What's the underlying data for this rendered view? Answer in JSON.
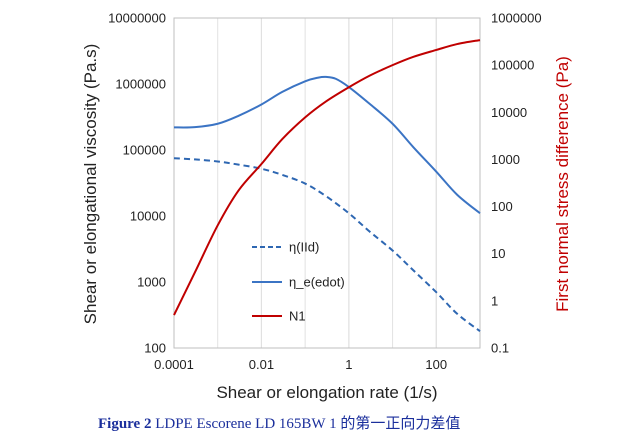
{
  "chart_data": {
    "type": "line",
    "title": "",
    "xlabel": "Shear or elongation rate (1/s)",
    "ylabel_left": "Shear or elongational viscosity (Pa.s)",
    "ylabel_right": "First normal stress difference (Pa)",
    "x_scale": "log",
    "xlim": [
      0.0001,
      1000
    ],
    "y_left_scale": "log",
    "ylim_left": [
      100,
      10000000
    ],
    "y_right_scale": "log",
    "ylim_right": [
      0.1,
      1000000
    ],
    "x_ticks": [
      "0.0001",
      "0.01",
      "1",
      "100"
    ],
    "x_tick_values": [
      0.0001,
      0.01,
      1,
      100
    ],
    "y_left_ticks": [
      "100",
      "1000",
      "10000",
      "100000",
      "1000000",
      "10000000"
    ],
    "y_left_tick_values": [
      100,
      1000,
      10000,
      100000,
      1000000,
      10000000
    ],
    "y_right_ticks": [
      "0.1",
      "1",
      "10",
      "100",
      "1000",
      "10000",
      "100000",
      "1000000"
    ],
    "y_right_tick_values": [
      0.1,
      1,
      10,
      100,
      1000,
      10000,
      100000,
      1000000
    ],
    "grid": "vertical",
    "legend_position": "center-left",
    "series": [
      {
        "name": "η(IId)",
        "axis": "left",
        "color": "#2e67b2",
        "style": "dashed",
        "x": [
          0.0001,
          0.0003,
          0.001,
          0.003,
          0.01,
          0.03,
          0.1,
          0.3,
          1,
          3,
          10,
          30,
          100,
          300,
          1000
        ],
        "y": [
          75000,
          72000,
          67000,
          60000,
          52000,
          42000,
          31000,
          20000,
          11000,
          5800,
          3000,
          1500,
          700,
          330,
          180
        ]
      },
      {
        "name": "η_e(edot)",
        "axis": "left",
        "color": "#3b74c4",
        "style": "solid",
        "x": [
          0.0001,
          0.0003,
          0.001,
          0.003,
          0.01,
          0.03,
          0.1,
          0.2,
          0.3,
          0.5,
          1,
          3,
          10,
          30,
          100,
          300,
          1000
        ],
        "y": [
          220000,
          222000,
          250000,
          330000,
          490000,
          760000,
          1100000,
          1250000,
          1280000,
          1200000,
          900000,
          500000,
          250000,
          110000,
          47000,
          21000,
          11000
        ]
      },
      {
        "name": "N1",
        "axis": "right",
        "color": "#c00000",
        "style": "solid",
        "x": [
          0.0001,
          0.0003,
          0.001,
          0.003,
          0.01,
          0.03,
          0.1,
          0.3,
          1,
          3,
          10,
          30,
          100,
          300,
          1000
        ],
        "y": [
          0.5,
          4,
          40,
          220,
          800,
          2700,
          7800,
          17000,
          34000,
          60000,
          100000,
          150000,
          210000,
          280000,
          340000
        ]
      }
    ]
  },
  "caption": {
    "figure_label": "Figure 2",
    "text": " LDPE Escorene LD 165BW 1 的第一正向力差值"
  }
}
